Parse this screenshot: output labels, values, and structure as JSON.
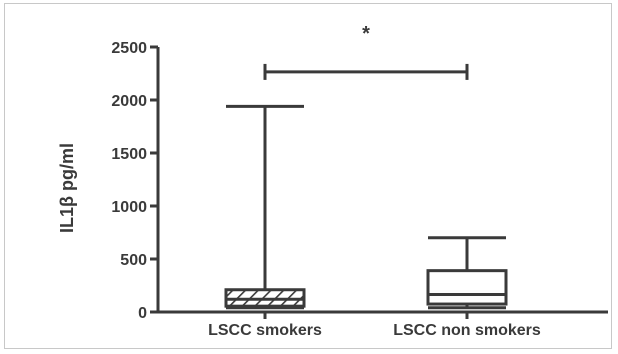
{
  "chart_data": {
    "type": "box",
    "title": "",
    "xlabel": "",
    "ylabel": "IL1β pg/ml",
    "ylim": [
      0,
      2500
    ],
    "yticks": [
      "0",
      "500",
      "1000",
      "1500",
      "2000",
      "2500"
    ],
    "ytick_values": [
      0,
      500,
      1000,
      1500,
      2000,
      2500
    ],
    "grid": false,
    "categories": [
      "LSCC smokers",
      "LSCC non smokers"
    ],
    "boxes": [
      {
        "category": "LSCC smokers",
        "min": 40,
        "q1": 55,
        "median": 120,
        "q3": 210,
        "max": 1940,
        "fill": "hatched"
      },
      {
        "category": "LSCC non smokers",
        "min": 40,
        "q1": 75,
        "median": 165,
        "q3": 390,
        "max": 700,
        "fill": "none"
      }
    ],
    "significance": {
      "label": "*",
      "between": [
        "LSCC smokers",
        "LSCC non smokers"
      ],
      "y": 2265
    }
  },
  "colors": {
    "ink": "#3a3a3a",
    "frame": "#c8c8c8"
  }
}
